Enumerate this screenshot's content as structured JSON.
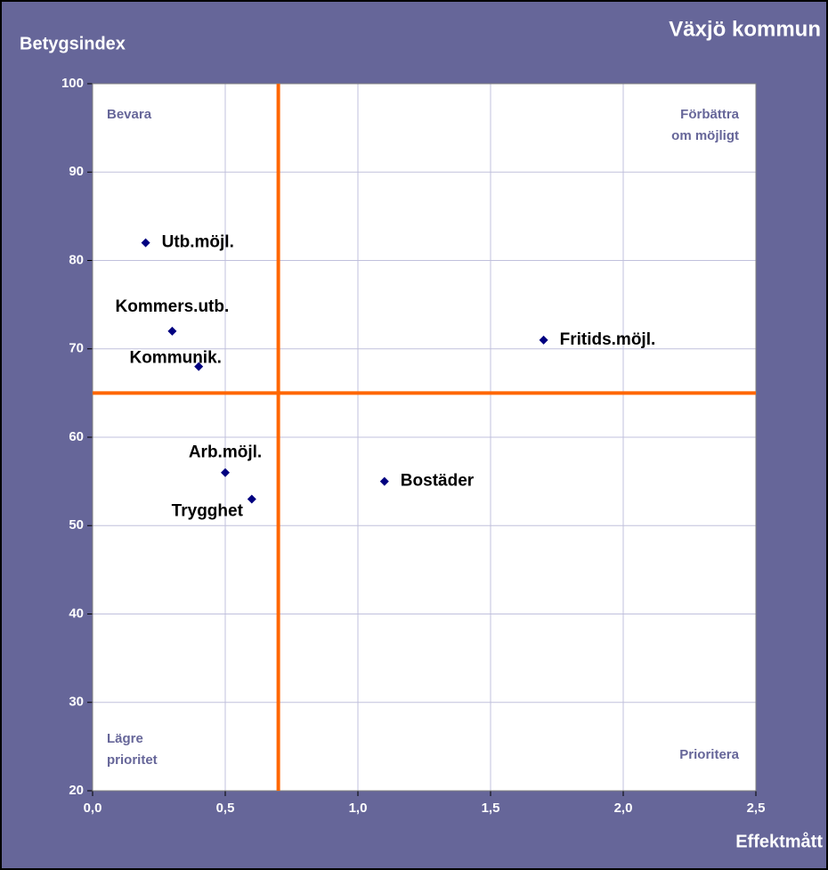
{
  "chart_data": {
    "type": "scatter",
    "title": "Växjö kommun",
    "y_label": "Betygsindex",
    "x_label": "Effektmått",
    "series": [
      {
        "name": "Växjö kommun",
        "color": "#000080",
        "labels": [
          "Utb.möjl.",
          "Kommers.utb.",
          "Kommunik.",
          "Fritids.möjl.",
          "Arb.möjl.",
          "Trygghet",
          "Bostäder"
        ],
        "x": [
          0.2,
          0.3,
          0.4,
          1.7,
          0.5,
          0.6,
          1.1
        ],
        "values": [
          82,
          72,
          68,
          71,
          56,
          53,
          55
        ]
      }
    ],
    "xlim": [
      0,
      2.5
    ],
    "xticks": [
      {
        "value": 0,
        "label": "0,0"
      },
      {
        "value": 0.5,
        "label": "0,5"
      },
      {
        "value": 1,
        "label": "1,0"
      },
      {
        "value": 1.5,
        "label": "1,5"
      },
      {
        "value": 2,
        "label": "2,0"
      },
      {
        "value": 2.5,
        "label": "2,5"
      }
    ],
    "ylim": [
      20,
      100
    ],
    "yticks": [
      20,
      30,
      40,
      50,
      60,
      70,
      80,
      90,
      100
    ],
    "grid": true,
    "reference_lines": {
      "x": 0.7,
      "y": 65,
      "color": "#ff6600"
    },
    "quadrant_labels": [
      [
        "Bevara"
      ],
      [
        "Förbättra",
        "om möjligt"
      ],
      [
        "Lägre",
        "prioritet"
      ],
      [
        "Prioritera"
      ]
    ]
  }
}
